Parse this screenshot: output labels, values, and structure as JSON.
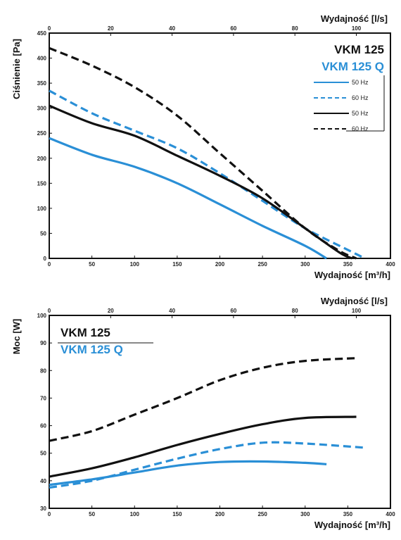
{
  "colors": {
    "VKM 125": "#111111",
    "VKM 125 Q": "#2a8fd6"
  },
  "chart_data": [
    {
      "type": "line",
      "title": "",
      "xlabel": "Wydajność [m³/h]",
      "x2label": "Wydajność [l/s]",
      "ylabel": "Ciśnienie [Pa]",
      "xlim": [
        0,
        400
      ],
      "x2lim": [
        0,
        111.11
      ],
      "ylim": [
        0,
        450
      ],
      "xticks": [
        "0",
        "50",
        "100",
        "150",
        "200",
        "250",
        "300",
        "350",
        "400"
      ],
      "x2ticks": [
        "0",
        "20",
        "40",
        "60",
        "80",
        "100"
      ],
      "yticks": [
        "0",
        "50",
        "100",
        "150",
        "200",
        "250",
        "300",
        "350",
        "400",
        "450"
      ],
      "grid": false,
      "legend_title": [
        "VKM 125",
        "VKM 125 Q"
      ],
      "legend_entries": [
        "50 Hz",
        "60 Hz",
        "50 Hz",
        "60 Hz"
      ],
      "series": [
        {
          "model": "VKM 125 Q",
          "freq": "50 Hz",
          "dash": false,
          "x": [
            0,
            50,
            100,
            150,
            200,
            250,
            300,
            325
          ],
          "y": [
            240,
            207,
            183,
            150,
            108,
            65,
            25,
            0
          ]
        },
        {
          "model": "VKM 125 Q",
          "freq": "60 Hz",
          "dash": true,
          "x": [
            0,
            50,
            100,
            150,
            200,
            250,
            300,
            350,
            370
          ],
          "y": [
            335,
            290,
            255,
            220,
            170,
            115,
            60,
            17,
            0
          ]
        },
        {
          "model": "VKM 125",
          "freq": "50 Hz",
          "dash": false,
          "x": [
            0,
            50,
            100,
            150,
            200,
            250,
            300,
            340,
            355
          ],
          "y": [
            305,
            270,
            245,
            205,
            165,
            120,
            60,
            12,
            0
          ]
        },
        {
          "model": "VKM 125",
          "freq": "60 Hz",
          "dash": true,
          "x": [
            0,
            50,
            100,
            150,
            200,
            250,
            300,
            340,
            360
          ],
          "y": [
            420,
            385,
            342,
            285,
            210,
            135,
            60,
            15,
            0
          ]
        }
      ]
    },
    {
      "type": "line",
      "title": "",
      "xlabel": "Wydajność [m³/h]",
      "x2label": "Wydajność [l/s]",
      "ylabel": "Moc [W]",
      "xlim": [
        0,
        400
      ],
      "x2lim": [
        0,
        111.11
      ],
      "ylim": [
        30,
        100
      ],
      "xticks": [
        "0",
        "50",
        "100",
        "150",
        "200",
        "250",
        "300",
        "350",
        "400"
      ],
      "x2ticks": [
        "0",
        "20",
        "40",
        "60",
        "80",
        "100"
      ],
      "yticks": [
        "30",
        "40",
        "50",
        "60",
        "70",
        "80",
        "90",
        "100"
      ],
      "grid": false,
      "legend_title": [
        "VKM 125",
        "VKM 125 Q"
      ],
      "series": [
        {
          "model": "VKM 125",
          "freq": "60 Hz",
          "dash": true,
          "x": [
            0,
            50,
            100,
            150,
            200,
            250,
            300,
            360
          ],
          "y": [
            54.5,
            58,
            64,
            70,
            76.5,
            81,
            83.5,
            84.5
          ]
        },
        {
          "model": "VKM 125",
          "freq": "50 Hz",
          "dash": false,
          "x": [
            0,
            50,
            100,
            150,
            200,
            250,
            300,
            360
          ],
          "y": [
            41.5,
            44.5,
            48.5,
            53,
            57,
            60.5,
            62.8,
            63.2
          ]
        },
        {
          "model": "VKM 125 Q",
          "freq": "60 Hz",
          "dash": true,
          "x": [
            0,
            50,
            100,
            150,
            200,
            250,
            300,
            370
          ],
          "y": [
            37.5,
            40,
            44,
            48,
            51.5,
            53.8,
            53.5,
            52
          ]
        },
        {
          "model": "VKM 125 Q",
          "freq": "50 Hz",
          "dash": false,
          "x": [
            0,
            50,
            100,
            150,
            200,
            250,
            300,
            325
          ],
          "y": [
            38.5,
            40.5,
            43,
            45.5,
            46.8,
            47,
            46.5,
            46
          ]
        }
      ]
    }
  ]
}
